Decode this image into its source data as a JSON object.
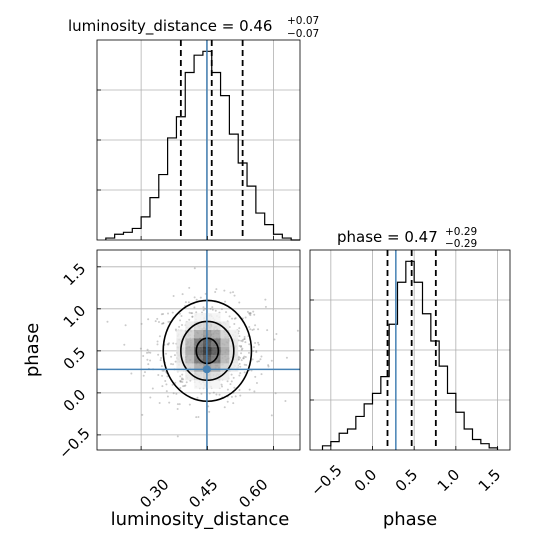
{
  "figure": {
    "type": "corner plot"
  },
  "colors": {
    "truth": "#4682b4",
    "hist": "#000000",
    "grid": "#b0b0b0",
    "scatter": "#8c8c8c"
  },
  "titles": {
    "luminosity_distance": {
      "name": "luminosity_distance",
      "median": "0.46",
      "plus": "+0.07",
      "minus": "−0.07"
    },
    "phase": {
      "name": "phase",
      "median": "0.47",
      "plus": "+0.29",
      "minus": "−0.29"
    }
  },
  "axis_labels": {
    "x_left": "luminosity_distance",
    "x_right": "phase",
    "y_left": "phase"
  },
  "tick_labels": {
    "ld": [
      "0.30",
      "0.45",
      "0.60"
    ],
    "phase_x": [
      "−0.5",
      "0.0",
      "0.5",
      "1.0",
      "1.5"
    ],
    "phase_y": [
      "−0.5",
      "0.0",
      "0.5",
      "1.0",
      "1.5"
    ]
  },
  "chart_data": [
    {
      "type": "histogram",
      "parameter": "luminosity_distance",
      "xlim": [
        0.2,
        0.66
      ],
      "bin_edges": [
        0.22,
        0.24,
        0.26,
        0.28,
        0.3,
        0.32,
        0.34,
        0.36,
        0.38,
        0.4,
        0.42,
        0.44,
        0.46,
        0.48,
        0.5,
        0.52,
        0.54,
        0.56,
        0.58,
        0.6,
        0.62,
        0.64,
        0.66
      ],
      "counts": [
        1,
        3,
        4,
        6,
        12,
        22,
        34,
        53,
        64,
        87,
        96,
        98,
        87,
        75,
        55,
        40,
        28,
        14,
        8,
        3,
        1,
        0
      ],
      "quantiles": [
        0.39,
        0.46,
        0.53
      ],
      "truth": 0.449,
      "grid": true
    },
    {
      "type": "histogram",
      "parameter": "phase",
      "xlim": [
        -0.75,
        1.65
      ],
      "bin_edges": [
        -0.6,
        -0.5,
        -0.4,
        -0.3,
        -0.2,
        -0.1,
        0.0,
        0.1,
        0.2,
        0.3,
        0.4,
        0.5,
        0.6,
        0.7,
        0.8,
        0.9,
        1.0,
        1.1,
        1.2,
        1.3,
        1.4,
        1.5
      ],
      "counts": [
        2,
        4,
        8,
        10,
        16,
        22,
        27,
        35,
        60,
        80,
        90,
        80,
        65,
        52,
        40,
        27,
        18,
        10,
        5,
        3,
        1
      ],
      "quantiles": [
        0.18,
        0.47,
        0.76
      ],
      "truth": 0.28,
      "grid": true
    },
    {
      "type": "2d-density",
      "x_parameter": "luminosity_distance",
      "y_parameter": "phase",
      "xlim": [
        0.2,
        0.66
      ],
      "ylim": [
        -0.68,
        1.7
      ],
      "center": [
        0.45,
        0.5
      ],
      "contour_half_widths": [
        [
          0.025,
          0.15
        ],
        [
          0.06,
          0.35
        ],
        [
          0.1,
          0.6
        ]
      ],
      "truth": [
        0.449,
        0.28
      ],
      "grid": true
    }
  ]
}
